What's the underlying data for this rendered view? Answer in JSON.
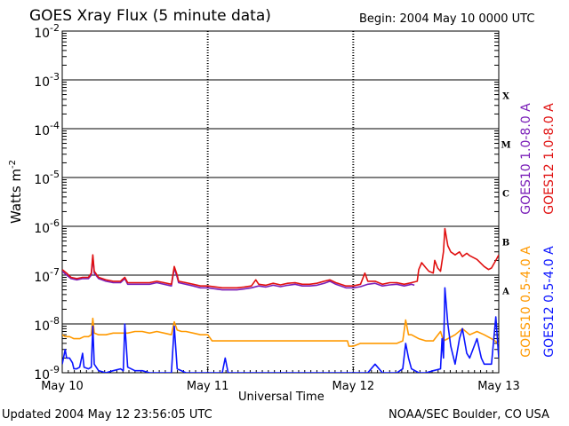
{
  "chart_data": {
    "type": "line",
    "title": "GOES Xray Flux (5 minute data)",
    "begin_label": "Begin:  2004 May 10 0000 UTC",
    "xlabel": "Universal Time",
    "ylabel": "Watts m",
    "ylabel_superscript": "-2",
    "x_unit": "days since 2004 May 10 0000 UTC",
    "xlim": [
      0,
      3
    ],
    "x_ticks": [
      {
        "value": 0,
        "label": "May 10"
      },
      {
        "value": 1,
        "label": "May 11"
      },
      {
        "value": 2,
        "label": "May 12"
      },
      {
        "value": 3,
        "label": "May 13"
      }
    ],
    "y_scale": "log",
    "ylim": [
      1e-09,
      0.01
    ],
    "y_ticks": [
      {
        "value": 0.01,
        "base": "10",
        "exp": "-2"
      },
      {
        "value": 0.001,
        "base": "10",
        "exp": "-3"
      },
      {
        "value": 0.0001,
        "base": "10",
        "exp": "-4"
      },
      {
        "value": 1e-05,
        "base": "10",
        "exp": "-5"
      },
      {
        "value": 1e-06,
        "base": "10",
        "exp": "-6"
      },
      {
        "value": 1e-07,
        "base": "10",
        "exp": "-7"
      },
      {
        "value": 1e-08,
        "base": "10",
        "exp": "-8"
      },
      {
        "value": 1e-09,
        "base": "10",
        "exp": "-9"
      }
    ],
    "flare_classes": [
      {
        "label": "X",
        "value": 0.0005
      },
      {
        "label": "M",
        "value": 5e-05
      },
      {
        "label": "C",
        "value": 5e-06
      },
      {
        "label": "B",
        "value": 5e-07
      },
      {
        "label": "A",
        "value": 5e-08
      }
    ],
    "grid": true,
    "legend_position": "right",
    "series": [
      {
        "name": "GOES10 1.0-8.0 A",
        "color": "#7a1fb8",
        "points": [
          [
            0,
            1.2e-07
          ],
          [
            0.03,
            1e-07
          ],
          [
            0.06,
            8.5e-08
          ],
          [
            0.1,
            8e-08
          ],
          [
            0.14,
            8.5e-08
          ],
          [
            0.18,
            8.5e-08
          ],
          [
            0.2,
            1e-07
          ],
          [
            0.21,
            2.4e-07
          ],
          [
            0.22,
            1.1e-07
          ],
          [
            0.25,
            8.5e-08
          ],
          [
            0.3,
            7.5e-08
          ],
          [
            0.35,
            7e-08
          ],
          [
            0.4,
            7e-08
          ],
          [
            0.43,
            8.5e-08
          ],
          [
            0.45,
            6.5e-08
          ],
          [
            0.5,
            6.5e-08
          ],
          [
            0.6,
            6.5e-08
          ],
          [
            0.65,
            7e-08
          ],
          [
            0.7,
            6.5e-08
          ],
          [
            0.75,
            6e-08
          ],
          [
            0.77,
            1.4e-07
          ],
          [
            0.79,
            9e-08
          ],
          [
            0.8,
            7e-08
          ],
          [
            0.85,
            6.5e-08
          ],
          [
            0.9,
            6e-08
          ],
          [
            0.95,
            5.5e-08
          ],
          [
            1.0,
            5.5e-08
          ],
          [
            1.1,
            5e-08
          ],
          [
            1.2,
            5e-08
          ],
          [
            1.25,
            5.2e-08
          ],
          [
            1.3,
            5.5e-08
          ],
          [
            1.35,
            6e-08
          ],
          [
            1.4,
            5.7e-08
          ],
          [
            1.45,
            6.2e-08
          ],
          [
            1.5,
            5.8e-08
          ],
          [
            1.55,
            6.2e-08
          ],
          [
            1.6,
            6.5e-08
          ],
          [
            1.65,
            6e-08
          ],
          [
            1.7,
            6e-08
          ],
          [
            1.75,
            6.2e-08
          ],
          [
            1.8,
            6.8e-08
          ],
          [
            1.84,
            7.5e-08
          ],
          [
            1.88,
            6.5e-08
          ],
          [
            1.95,
            5.5e-08
          ],
          [
            2.0,
            5.5e-08
          ],
          [
            2.05,
            5.8e-08
          ],
          [
            2.1,
            6.5e-08
          ],
          [
            2.15,
            6.8e-08
          ],
          [
            2.2,
            6e-08
          ],
          [
            2.25,
            6.3e-08
          ],
          [
            2.3,
            6.5e-08
          ],
          [
            2.35,
            6e-08
          ],
          [
            2.4,
            6.5e-08
          ],
          [
            2.42,
            6.2e-08
          ]
        ]
      },
      {
        "name": "GOES12 1.0-8.0 A",
        "color": "#e01010",
        "points": [
          [
            0,
            1.3e-07
          ],
          [
            0.03,
            1.1e-07
          ],
          [
            0.06,
            9e-08
          ],
          [
            0.1,
            8.5e-08
          ],
          [
            0.14,
            9e-08
          ],
          [
            0.18,
            9e-08
          ],
          [
            0.2,
            1.1e-07
          ],
          [
            0.21,
            2.6e-07
          ],
          [
            0.22,
            1.2e-07
          ],
          [
            0.25,
            9e-08
          ],
          [
            0.3,
            8e-08
          ],
          [
            0.35,
            7.5e-08
          ],
          [
            0.4,
            7.5e-08
          ],
          [
            0.43,
            9e-08
          ],
          [
            0.45,
            7e-08
          ],
          [
            0.5,
            7e-08
          ],
          [
            0.6,
            7e-08
          ],
          [
            0.65,
            7.5e-08
          ],
          [
            0.7,
            7e-08
          ],
          [
            0.75,
            6.5e-08
          ],
          [
            0.77,
            1.5e-07
          ],
          [
            0.79,
            1e-07
          ],
          [
            0.8,
            7.5e-08
          ],
          [
            0.85,
            7e-08
          ],
          [
            0.9,
            6.5e-08
          ],
          [
            0.95,
            6e-08
          ],
          [
            1.0,
            6e-08
          ],
          [
            1.1,
            5.5e-08
          ],
          [
            1.2,
            5.5e-08
          ],
          [
            1.25,
            5.7e-08
          ],
          [
            1.3,
            6e-08
          ],
          [
            1.33,
            8e-08
          ],
          [
            1.35,
            6.5e-08
          ],
          [
            1.4,
            6.2e-08
          ],
          [
            1.45,
            6.8e-08
          ],
          [
            1.5,
            6.3e-08
          ],
          [
            1.55,
            6.8e-08
          ],
          [
            1.6,
            7e-08
          ],
          [
            1.65,
            6.5e-08
          ],
          [
            1.7,
            6.5e-08
          ],
          [
            1.75,
            6.8e-08
          ],
          [
            1.8,
            7.5e-08
          ],
          [
            1.84,
            8e-08
          ],
          [
            1.88,
            7e-08
          ],
          [
            1.95,
            6e-08
          ],
          [
            2.0,
            6e-08
          ],
          [
            2.05,
            6.5e-08
          ],
          [
            2.08,
            1.1e-07
          ],
          [
            2.1,
            7.5e-08
          ],
          [
            2.15,
            7.5e-08
          ],
          [
            2.2,
            6.5e-08
          ],
          [
            2.25,
            7e-08
          ],
          [
            2.3,
            7e-08
          ],
          [
            2.35,
            6.5e-08
          ],
          [
            2.4,
            7e-08
          ],
          [
            2.44,
            7.5e-08
          ],
          [
            2.45,
            1.3e-07
          ],
          [
            2.47,
            1.8e-07
          ],
          [
            2.5,
            1.4e-07
          ],
          [
            2.52,
            1.2e-07
          ],
          [
            2.55,
            1.1e-07
          ],
          [
            2.56,
            2e-07
          ],
          [
            2.58,
            1.4e-07
          ],
          [
            2.6,
            1.2e-07
          ],
          [
            2.62,
            3e-07
          ],
          [
            2.63,
            9e-07
          ],
          [
            2.65,
            4e-07
          ],
          [
            2.67,
            3e-07
          ],
          [
            2.7,
            2.6e-07
          ],
          [
            2.73,
            3e-07
          ],
          [
            2.75,
            2.4e-07
          ],
          [
            2.78,
            2.8e-07
          ],
          [
            2.8,
            2.5e-07
          ],
          [
            2.85,
            2.1e-07
          ],
          [
            2.9,
            1.5e-07
          ],
          [
            2.93,
            1.3e-07
          ],
          [
            2.95,
            1.4e-07
          ],
          [
            2.98,
            2e-07
          ],
          [
            3.0,
            2.6e-07
          ]
        ]
      },
      {
        "name": "GOES10 0.5-4.0 A",
        "color": "#ff9900",
        "points": [
          [
            0,
            6e-09
          ],
          [
            0.02,
            5.5e-09
          ],
          [
            0.05,
            5.5e-09
          ],
          [
            0.08,
            5e-09
          ],
          [
            0.12,
            5e-09
          ],
          [
            0.15,
            5.5e-09
          ],
          [
            0.18,
            5.5e-09
          ],
          [
            0.2,
            6e-09
          ],
          [
            0.21,
            1.3e-08
          ],
          [
            0.22,
            6.5e-09
          ],
          [
            0.25,
            6e-09
          ],
          [
            0.3,
            6e-09
          ],
          [
            0.35,
            6.5e-09
          ],
          [
            0.4,
            6.5e-09
          ],
          [
            0.45,
            6.5e-09
          ],
          [
            0.5,
            7e-09
          ],
          [
            0.55,
            7e-09
          ],
          [
            0.6,
            6.5e-09
          ],
          [
            0.65,
            7e-09
          ],
          [
            0.7,
            6.5e-09
          ],
          [
            0.75,
            6e-09
          ],
          [
            0.77,
            1.1e-08
          ],
          [
            0.79,
            7.5e-09
          ],
          [
            0.82,
            7e-09
          ],
          [
            0.85,
            7e-09
          ],
          [
            0.9,
            6.5e-09
          ],
          [
            0.95,
            6e-09
          ],
          [
            1.0,
            6e-09
          ],
          [
            1.03,
            4.5e-09
          ],
          [
            1.1,
            4.5e-09
          ],
          [
            1.2,
            4.5e-09
          ],
          [
            1.3,
            4.5e-09
          ],
          [
            1.4,
            4.5e-09
          ],
          [
            1.5,
            4.5e-09
          ],
          [
            1.6,
            4.5e-09
          ],
          [
            1.7,
            4.5e-09
          ],
          [
            1.8,
            4.5e-09
          ],
          [
            1.9,
            4.5e-09
          ],
          [
            1.96,
            4.5e-09
          ],
          [
            1.97,
            3.5e-09
          ],
          [
            2.0,
            3.5e-09
          ],
          [
            2.05,
            4e-09
          ],
          [
            2.1,
            4e-09
          ],
          [
            2.2,
            4e-09
          ],
          [
            2.3,
            4e-09
          ],
          [
            2.34,
            4.5e-09
          ],
          [
            2.36,
            1.2e-08
          ],
          [
            2.38,
            6e-09
          ],
          [
            2.4,
            6e-09
          ],
          [
            2.45,
            5e-09
          ],
          [
            2.5,
            4.5e-09
          ],
          [
            2.55,
            4.5e-09
          ],
          [
            2.6,
            7e-09
          ],
          [
            2.62,
            4.5e-09
          ],
          [
            2.65,
            5e-09
          ],
          [
            2.7,
            6e-09
          ],
          [
            2.75,
            8e-09
          ],
          [
            2.8,
            6e-09
          ],
          [
            2.85,
            7e-09
          ],
          [
            2.9,
            6e-09
          ],
          [
            2.95,
            5e-09
          ],
          [
            3.0,
            4e-09
          ]
        ]
      },
      {
        "name": "GOES12 0.5-4.0 A",
        "color": "#0a14ff",
        "points": [
          [
            0,
            1.5e-09
          ],
          [
            0.02,
            3e-09
          ],
          [
            0.03,
            2e-09
          ],
          [
            0.05,
            2e-09
          ],
          [
            0.07,
            1.6e-09
          ],
          [
            0.08,
            1.2e-09
          ],
          [
            0.1,
            1.2e-09
          ],
          [
            0.12,
            1.3e-09
          ],
          [
            0.14,
            2.5e-09
          ],
          [
            0.15,
            1.3e-09
          ],
          [
            0.18,
            1.2e-09
          ],
          [
            0.2,
            1.3e-09
          ],
          [
            0.21,
            9e-09
          ],
          [
            0.22,
            1.5e-09
          ],
          [
            0.25,
            1.1e-09
          ],
          [
            0.3,
            1e-09
          ],
          [
            0.35,
            1.1e-09
          ],
          [
            0.4,
            1.2e-09
          ],
          [
            0.42,
            1.1e-09
          ],
          [
            0.43,
            1e-08
          ],
          [
            0.45,
            1.3e-09
          ],
          [
            0.5,
            1.1e-09
          ],
          [
            0.55,
            1.1e-09
          ],
          [
            0.6,
            1e-09
          ],
          [
            0.65,
            1e-09
          ],
          [
            0.7,
            1e-09
          ],
          [
            0.75,
            1e-09
          ],
          [
            0.77,
            9e-09
          ],
          [
            0.79,
            1.2e-09
          ],
          [
            0.85,
            1e-09
          ],
          [
            0.9,
            1e-09
          ],
          [
            0.95,
            1e-09
          ],
          [
            1.0,
            1e-09
          ],
          [
            1.1,
            1e-09
          ],
          [
            1.12,
            2e-09
          ],
          [
            1.14,
            1e-09
          ],
          [
            1.3,
            1e-09
          ],
          [
            1.5,
            1e-09
          ],
          [
            1.7,
            1e-09
          ],
          [
            1.9,
            1e-09
          ],
          [
            2.0,
            1e-09
          ],
          [
            2.1,
            1e-09
          ],
          [
            2.15,
            1.5e-09
          ],
          [
            2.2,
            1e-09
          ],
          [
            2.3,
            1e-09
          ],
          [
            2.34,
            1.2e-09
          ],
          [
            2.36,
            4e-09
          ],
          [
            2.38,
            2e-09
          ],
          [
            2.4,
            1.2e-09
          ],
          [
            2.45,
            1e-09
          ],
          [
            2.5,
            1e-09
          ],
          [
            2.55,
            1.1e-09
          ],
          [
            2.6,
            1.2e-09
          ],
          [
            2.61,
            5e-09
          ],
          [
            2.62,
            2e-09
          ],
          [
            2.63,
            5.5e-08
          ],
          [
            2.65,
            1e-08
          ],
          [
            2.67,
            3.5e-09
          ],
          [
            2.7,
            1.5e-09
          ],
          [
            2.73,
            5e-09
          ],
          [
            2.75,
            8e-09
          ],
          [
            2.78,
            2.5e-09
          ],
          [
            2.8,
            2e-09
          ],
          [
            2.85,
            5e-09
          ],
          [
            2.88,
            2e-09
          ],
          [
            2.9,
            1.5e-09
          ],
          [
            2.95,
            1.5e-09
          ],
          [
            2.98,
            1.4e-08
          ],
          [
            3.0,
            2e-09
          ]
        ]
      }
    ]
  },
  "footer": {
    "updated": "Updated 2004 May 12 23:56:05 UTC",
    "credit": "NOAA/SEC Boulder, CO USA"
  }
}
